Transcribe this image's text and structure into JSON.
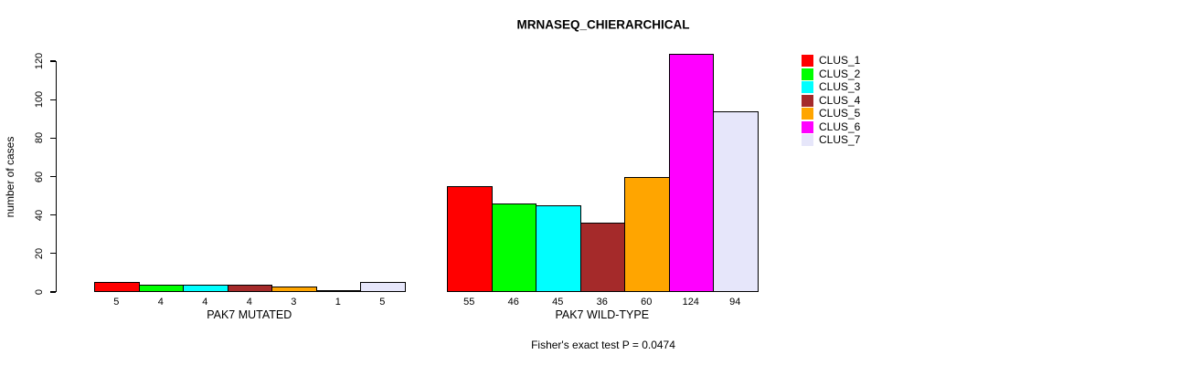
{
  "chart_data": {
    "type": "bar",
    "title": "MRNASEQ_CHIERARCHICAL",
    "ylabel": "number of cases",
    "xlabel": "",
    "ylim": [
      0,
      120
    ],
    "yticks": [
      0,
      20,
      40,
      60,
      80,
      100,
      120
    ],
    "grid": false,
    "background": "#FFFFFF",
    "bar_border_color": "#000000",
    "legend_position": "right",
    "legend": [
      {
        "label": "CLUS_1",
        "color": "#FF0000"
      },
      {
        "label": "CLUS_2",
        "color": "#00FF00"
      },
      {
        "label": "CLUS_3",
        "color": "#00FFFF"
      },
      {
        "label": "CLUS_4",
        "color": "#A52A2A"
      },
      {
        "label": "CLUS_5",
        "color": "#FFA500"
      },
      {
        "label": "CLUS_6",
        "color": "#FF00FF"
      },
      {
        "label": "CLUS_7",
        "color": "#E6E6FA"
      }
    ],
    "groups": [
      {
        "label": "PAK7 MUTATED",
        "values": [
          5,
          4,
          4,
          4,
          3,
          1,
          5
        ]
      },
      {
        "label": "PAK7 WILD-TYPE",
        "values": [
          55,
          46,
          45,
          36,
          60,
          124,
          94
        ]
      }
    ],
    "bar_value_labels_shown": true,
    "annotation": "Fisher's exact test P = 0.0474"
  }
}
